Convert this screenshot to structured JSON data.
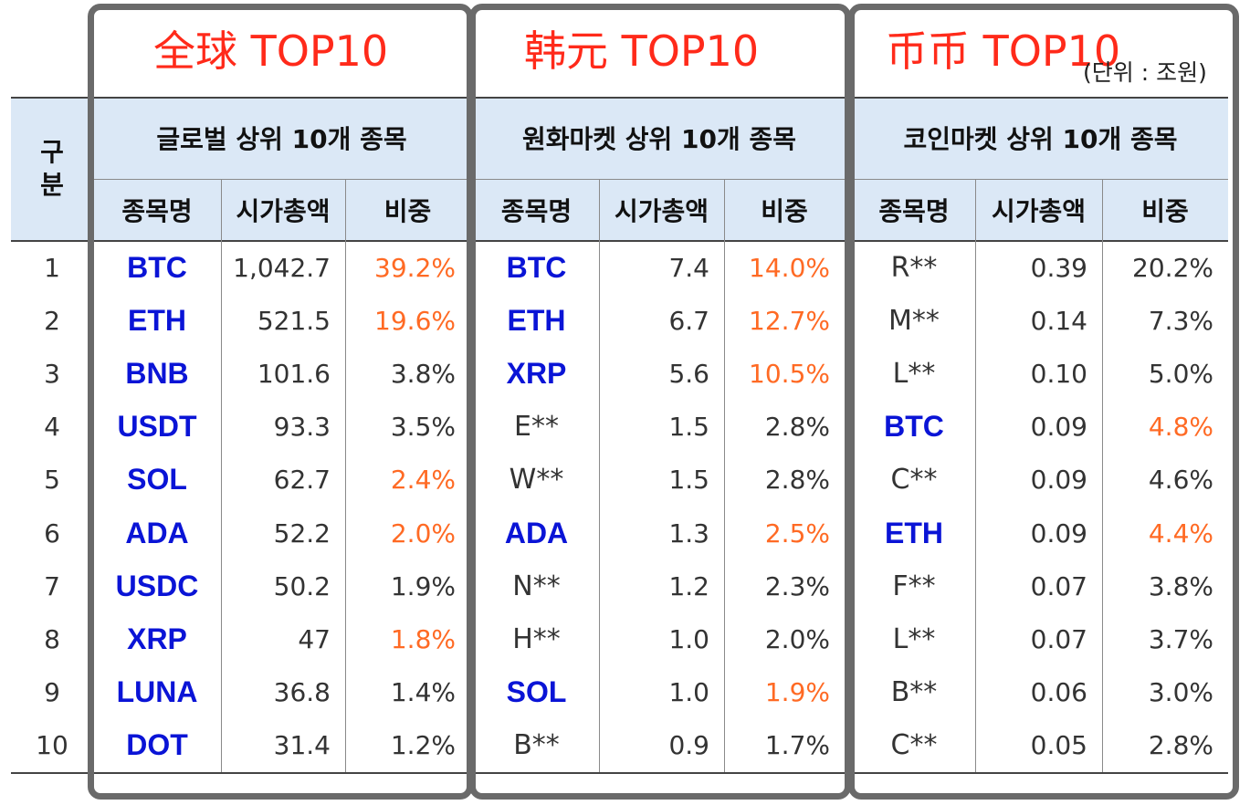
{
  "unit_note": "(단위 : 조원)",
  "row_header": "구분",
  "colors": {
    "title": "#ff2a1a",
    "ticker": "#0a14d6",
    "highlight_pct": "#ff6a24",
    "header_band": "#dbe8f6"
  },
  "column_headers": [
    "종목명",
    "시가총액",
    "비중"
  ],
  "ranks": [
    "1",
    "2",
    "3",
    "4",
    "5",
    "6",
    "7",
    "8",
    "9",
    "10"
  ],
  "groups": [
    {
      "title": "全球 TOP10",
      "subtitle": "글로벌 상위 10개 종목",
      "rows": [
        {
          "name": "BTC",
          "name_hl": true,
          "cap": "1,042.7",
          "weight": "39.2%",
          "weight_hl": true
        },
        {
          "name": "ETH",
          "name_hl": true,
          "cap": "521.5",
          "weight": "19.6%",
          "weight_hl": true
        },
        {
          "name": "BNB",
          "name_hl": true,
          "cap": "101.6",
          "weight": "3.8%",
          "weight_hl": false
        },
        {
          "name": "USDT",
          "name_hl": true,
          "cap": "93.3",
          "weight": "3.5%",
          "weight_hl": false
        },
        {
          "name": "SOL",
          "name_hl": true,
          "cap": "62.7",
          "weight": "2.4%",
          "weight_hl": true
        },
        {
          "name": "ADA",
          "name_hl": true,
          "cap": "52.2",
          "weight": "2.0%",
          "weight_hl": true
        },
        {
          "name": "USDC",
          "name_hl": true,
          "cap": "50.2",
          "weight": "1.9%",
          "weight_hl": false
        },
        {
          "name": "XRP",
          "name_hl": true,
          "cap": "47",
          "weight": "1.8%",
          "weight_hl": true
        },
        {
          "name": "LUNA",
          "name_hl": true,
          "cap": "36.8",
          "weight": "1.4%",
          "weight_hl": false
        },
        {
          "name": "DOT",
          "name_hl": true,
          "cap": "31.4",
          "weight": "1.2%",
          "weight_hl": false
        }
      ]
    },
    {
      "title": "韩元 TOP10",
      "subtitle": "원화마켓 상위 10개 종목",
      "rows": [
        {
          "name": "BTC",
          "name_hl": true,
          "cap": "7.4",
          "weight": "14.0%",
          "weight_hl": true
        },
        {
          "name": "ETH",
          "name_hl": true,
          "cap": "6.7",
          "weight": "12.7%",
          "weight_hl": true
        },
        {
          "name": "XRP",
          "name_hl": true,
          "cap": "5.6",
          "weight": "10.5%",
          "weight_hl": true
        },
        {
          "name": "E**",
          "name_hl": false,
          "cap": "1.5",
          "weight": "2.8%",
          "weight_hl": false
        },
        {
          "name": "W**",
          "name_hl": false,
          "cap": "1.5",
          "weight": "2.8%",
          "weight_hl": false
        },
        {
          "name": "ADA",
          "name_hl": true,
          "cap": "1.3",
          "weight": "2.5%",
          "weight_hl": true
        },
        {
          "name": "N**",
          "name_hl": false,
          "cap": "1.2",
          "weight": "2.3%",
          "weight_hl": false
        },
        {
          "name": "H**",
          "name_hl": false,
          "cap": "1.0",
          "weight": "2.0%",
          "weight_hl": false
        },
        {
          "name": "SOL",
          "name_hl": true,
          "cap": "1.0",
          "weight": "1.9%",
          "weight_hl": true
        },
        {
          "name": "B**",
          "name_hl": false,
          "cap": "0.9",
          "weight": "1.7%",
          "weight_hl": false
        }
      ]
    },
    {
      "title": "币币 TOP10",
      "subtitle": "코인마켓 상위 10개 종목",
      "rows": [
        {
          "name": "R**",
          "name_hl": false,
          "cap": "0.39",
          "weight": "20.2%",
          "weight_hl": false
        },
        {
          "name": "M**",
          "name_hl": false,
          "cap": "0.14",
          "weight": "7.3%",
          "weight_hl": false
        },
        {
          "name": "L**",
          "name_hl": false,
          "cap": "0.10",
          "weight": "5.0%",
          "weight_hl": false
        },
        {
          "name": "BTC",
          "name_hl": true,
          "cap": "0.09",
          "weight": "4.8%",
          "weight_hl": true
        },
        {
          "name": "C**",
          "name_hl": false,
          "cap": "0.09",
          "weight": "4.6%",
          "weight_hl": false
        },
        {
          "name": "ETH",
          "name_hl": true,
          "cap": "0.09",
          "weight": "4.4%",
          "weight_hl": true
        },
        {
          "name": "F**",
          "name_hl": false,
          "cap": "0.07",
          "weight": "3.8%",
          "weight_hl": false
        },
        {
          "name": "L**",
          "name_hl": false,
          "cap": "0.07",
          "weight": "3.7%",
          "weight_hl": false
        },
        {
          "name": "B**",
          "name_hl": false,
          "cap": "0.06",
          "weight": "3.0%",
          "weight_hl": false
        },
        {
          "name": "C**",
          "name_hl": false,
          "cap": "0.05",
          "weight": "2.8%",
          "weight_hl": false
        }
      ]
    }
  ]
}
